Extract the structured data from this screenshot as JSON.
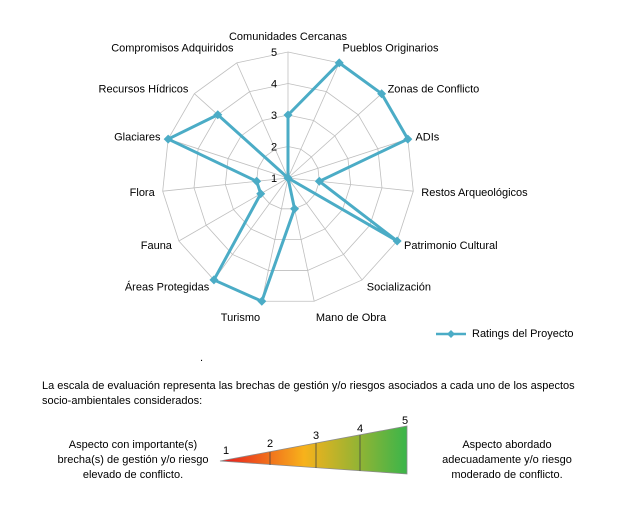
{
  "chart_data": {
    "type": "radar",
    "categories": [
      "Comunidades Cercanas",
      "Pueblos Originarios",
      "Zonas de Conflicto",
      "ADIs",
      "Restos Arqueológicos",
      "Patrimonio Cultural",
      "Socialización",
      "Mano de Obra",
      "Turismo",
      "Áreas Protegidas",
      "Fauna",
      "Flora",
      "Glaciares",
      "Recursos Hídricos",
      "Compromisos Adquiridos"
    ],
    "series": [
      {
        "name": "Ratings del Proyecto",
        "values": [
          3,
          5,
          5,
          5,
          2,
          5,
          1,
          2,
          5,
          5,
          2,
          2,
          5,
          4,
          1
        ],
        "color": "#4bacc6"
      }
    ],
    "rlim": [
      1,
      5
    ],
    "ticks": [
      "1",
      "2",
      "3",
      "4",
      "5"
    ],
    "grid": true,
    "legend_position": "right-bottom"
  },
  "note": {
    "dot": ".",
    "description": "La escala  de evaluación representa las brechas de gestión y/o riesgos asociados a cada uno de los aspectos socio-ambientales considerados:",
    "left_label": "Aspecto con importante(s) brecha(s) de gestión y/o riesgo elevado de conflicto.",
    "right_label": "Aspecto abordado adecuadamente y/o riesgo moderado de conflicto."
  },
  "scale": {
    "labels": [
      "1",
      "2",
      "3",
      "4",
      "5"
    ],
    "colors": {
      "low": "#e8161e",
      "mid": "#f7b21b",
      "high": "#3ab54a"
    }
  }
}
